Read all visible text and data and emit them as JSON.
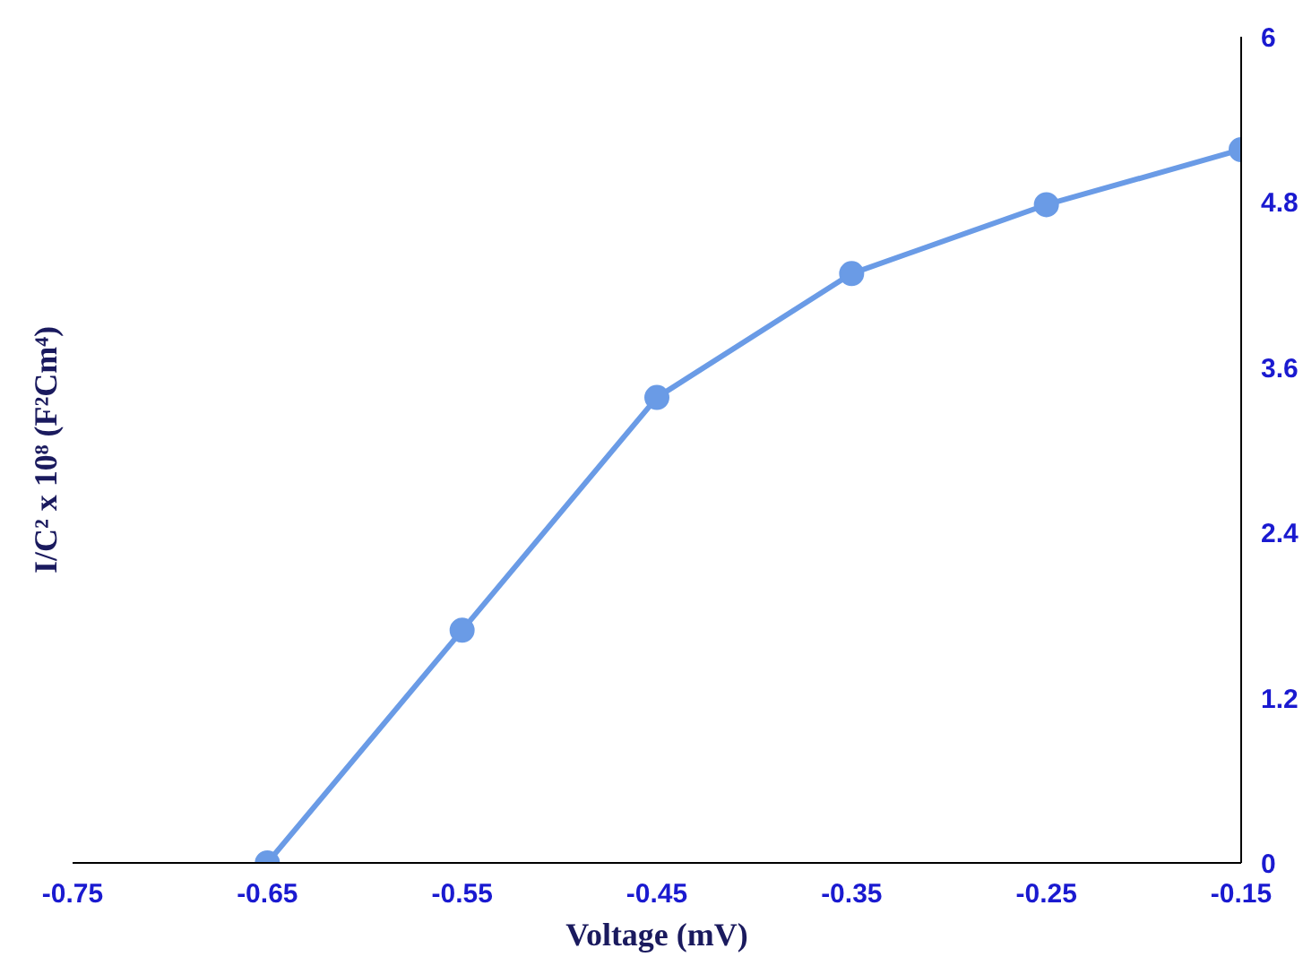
{
  "chart_data": {
    "type": "line",
    "xlabel": "Voltage (mV)",
    "ylabel": "I/C² x 10⁸ (F²Cm⁴)",
    "x": [
      -0.65,
      -0.55,
      -0.45,
      -0.35,
      -0.25,
      -0.15
    ],
    "series": [
      {
        "color": "#6a9be6",
        "values": [
          0,
          1.69,
          3.38,
          4.28,
          4.78,
          5.18
        ]
      }
    ],
    "xlim": [
      -0.75,
      -0.15
    ],
    "xticks": [
      -0.75,
      -0.65,
      -0.55,
      -0.45,
      -0.35,
      -0.25,
      -0.15
    ],
    "ylim": [
      0,
      6
    ],
    "yticks": [
      0,
      1.2,
      2.4,
      3.6,
      4.8,
      6
    ],
    "grid": false,
    "marker": "circle",
    "line_style": "solid"
  }
}
